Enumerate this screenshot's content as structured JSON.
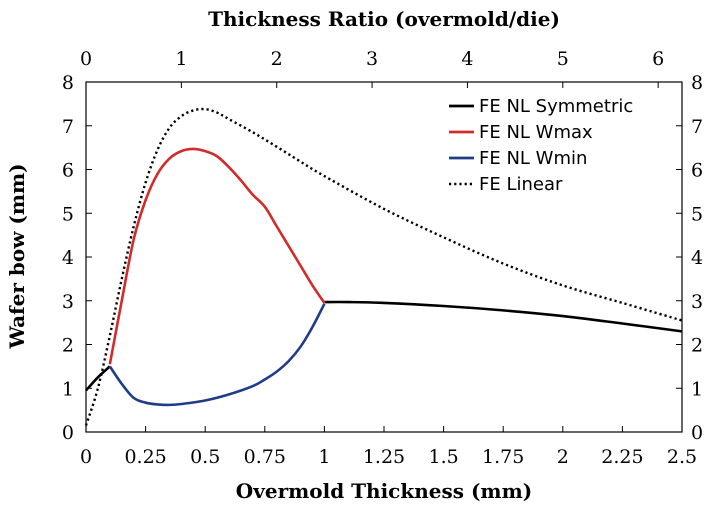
{
  "chart_data": {
    "type": "line",
    "xlabel": "Overmold Thickness (mm)",
    "ylabel": "Wafer bow (mm)",
    "top_xlabel": "Thickness Ratio (overmold/die)",
    "xlim": [
      0,
      2.5
    ],
    "ylim": [
      0,
      8
    ],
    "top_xlim": [
      0,
      6.25
    ],
    "x_ticks": [
      "0",
      "0.25",
      "0.5",
      "0.75",
      "1",
      "1.25",
      "1.5",
      "1.75",
      "2",
      "2.25",
      "2.5"
    ],
    "y_ticks": [
      "0",
      "1",
      "2",
      "3",
      "4",
      "5",
      "6",
      "7",
      "8"
    ],
    "top_ticks": [
      "0",
      "1",
      "2",
      "3",
      "4",
      "5",
      "6"
    ],
    "legend_position": "top-right",
    "series": [
      {
        "name": "FE NL Symmetric",
        "color": "#000000",
        "style": "solid",
        "x": [
          0,
          0.05,
          0.1
        ],
        "y": [
          0.95,
          1.25,
          1.5
        ]
      },
      {
        "name": "FE NL Symmetric (continued)",
        "legend": false,
        "color": "#000000",
        "style": "solid",
        "x": [
          1.0,
          1.1,
          1.25,
          1.5,
          1.75,
          2.0,
          2.25,
          2.5
        ],
        "y": [
          2.97,
          2.97,
          2.95,
          2.88,
          2.78,
          2.65,
          2.48,
          2.3
        ]
      },
      {
        "name": "FE NL Wmax",
        "color": "#d22b2b",
        "style": "solid",
        "x": [
          0.1,
          0.15,
          0.2,
          0.25,
          0.3,
          0.35,
          0.4,
          0.45,
          0.5,
          0.55,
          0.6,
          0.65,
          0.7,
          0.75,
          0.8,
          0.85,
          0.9,
          0.95,
          1.0
        ],
        "y": [
          1.55,
          3.0,
          4.4,
          5.3,
          5.9,
          6.25,
          6.42,
          6.47,
          6.42,
          6.3,
          6.05,
          5.75,
          5.42,
          5.15,
          4.7,
          4.25,
          3.8,
          3.35,
          2.95
        ]
      },
      {
        "name": "FE NL Wmin",
        "color": "#1f3c88",
        "style": "solid",
        "x": [
          0.1,
          0.15,
          0.2,
          0.25,
          0.3,
          0.35,
          0.4,
          0.5,
          0.6,
          0.7,
          0.75,
          0.8,
          0.85,
          0.9,
          0.95,
          1.0
        ],
        "y": [
          1.5,
          1.1,
          0.78,
          0.67,
          0.63,
          0.62,
          0.64,
          0.72,
          0.86,
          1.05,
          1.2,
          1.38,
          1.62,
          1.95,
          2.4,
          2.93
        ]
      },
      {
        "name": "FE Linear",
        "color": "#000000",
        "style": "dotted",
        "x": [
          0,
          0.05,
          0.1,
          0.15,
          0.2,
          0.25,
          0.3,
          0.35,
          0.4,
          0.45,
          0.5,
          0.55,
          0.6,
          0.7,
          0.8,
          0.9,
          1.0,
          1.25,
          1.5,
          1.75,
          2.0,
          2.25,
          2.5
        ],
        "y": [
          0.15,
          1.0,
          2.2,
          3.5,
          4.7,
          5.7,
          6.45,
          6.95,
          7.22,
          7.35,
          7.38,
          7.3,
          7.15,
          6.85,
          6.52,
          6.18,
          5.85,
          5.1,
          4.45,
          3.85,
          3.35,
          2.95,
          2.55
        ]
      }
    ]
  }
}
